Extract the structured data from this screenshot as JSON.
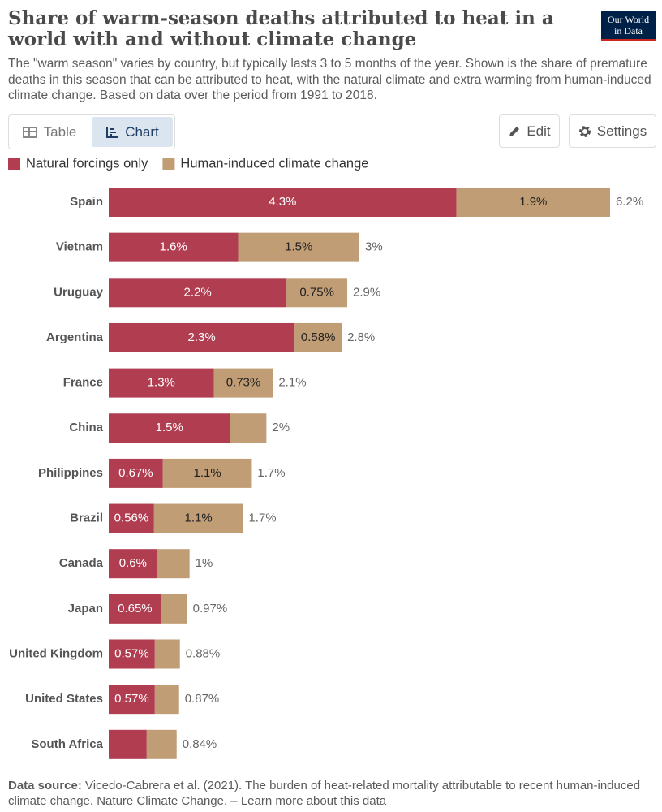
{
  "logo": [
    "Our World",
    "in Data"
  ],
  "tabs": [
    "Table",
    "Chart"
  ],
  "buttons": [
    "Edit",
    "Settings"
  ],
  "footer": {
    "label": "Data source:",
    "text": "Vicedo-Cabrera et al. (2021). The burden of heat-related mortality attributable to recent human-induced climate change. Nature Climate Change. –",
    "link": "Learn more about this data"
  },
  "chart_data": {
    "type": "stacked-bar-horizontal",
    "title": "Share of warm-season deaths attributed to heat in a world with and without climate change",
    "subtitle": "The \"warm season\" varies by country, but typically lasts 3 to 5 months of the year. Shown is the share of premature deaths in this season that can be attributed to heat, with the natural climate and extra warming from human-induced climate change. Based on data over the period from 1991 to 2018.",
    "categories": [
      "Spain",
      "Vietnam",
      "Uruguay",
      "Argentina",
      "France",
      "China",
      "Philippines",
      "Brazil",
      "Canada",
      "Japan",
      "United Kingdom",
      "United States",
      "South Africa"
    ],
    "series": [
      {
        "name": "Natural forcings only",
        "color": "#b13d51",
        "values": [
          4.3,
          1.6,
          2.2,
          2.3,
          1.3,
          1.5,
          0.67,
          0.56,
          0.6,
          0.65,
          0.57,
          0.57,
          0.47
        ],
        "value_labels": [
          "4.3%",
          "1.6%",
          "2.2%",
          "2.3%",
          "1.3%",
          "1.5%",
          "0.67%",
          "0.56%",
          "0.6%",
          "0.65%",
          "0.57%",
          "0.57%",
          null
        ]
      },
      {
        "name": "Human-induced climate change",
        "color": "#c19d75",
        "values": [
          1.9,
          1.5,
          0.75,
          0.58,
          0.73,
          0.45,
          1.1,
          1.1,
          0.4,
          0.32,
          0.31,
          0.3,
          0.37
        ],
        "value_labels": [
          "1.9%",
          "1.5%",
          "0.75%",
          "0.58%",
          "0.73%",
          null,
          "1.1%",
          "1.1%",
          null,
          null,
          null,
          null,
          null
        ]
      }
    ],
    "total_labels": [
      "6.2%",
      "3%",
      "2.9%",
      "2.8%",
      "2.1%",
      "2%",
      "1.7%",
      "1.7%",
      "1%",
      "0.97%",
      "0.88%",
      "0.87%",
      "0.84%"
    ],
    "xlim": [
      0,
      6.2
    ]
  }
}
